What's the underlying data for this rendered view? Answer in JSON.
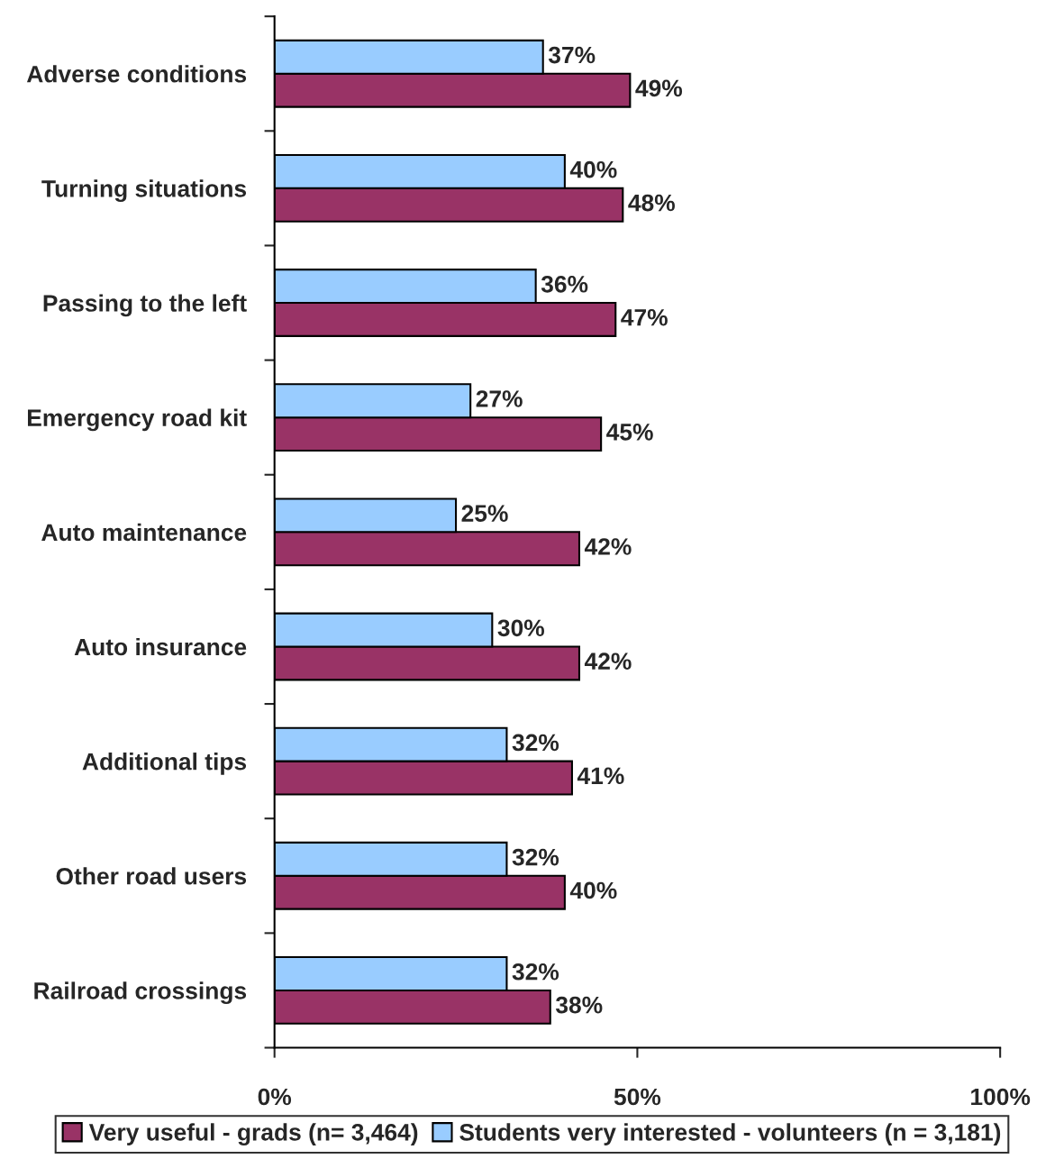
{
  "chart_data": {
    "type": "bar",
    "orientation": "horizontal",
    "categories": [
      "Adverse conditions",
      "Turning situations",
      "Passing to the left",
      "Emergency road kit",
      "Auto maintenance",
      "Auto insurance",
      "Additional tips",
      "Other road users",
      "Railroad crossings"
    ],
    "series": [
      {
        "name": "Very useful - grads (n= 3,464)",
        "color": "#993366",
        "values": [
          49,
          48,
          47,
          45,
          42,
          42,
          41,
          40,
          38
        ],
        "value_labels": [
          "49%",
          "48%",
          "47%",
          "45%",
          "42%",
          "42%",
          "41%",
          "40%",
          "38%"
        ]
      },
      {
        "name": "Students very interested - volunteers (n = 3,181)",
        "color": "#99ccff",
        "values": [
          37,
          40,
          36,
          27,
          25,
          30,
          32,
          32,
          32
        ],
        "value_labels": [
          "37%",
          "40%",
          "36%",
          "27%",
          "25%",
          "30%",
          "32%",
          "32%",
          "32%"
        ]
      }
    ],
    "xlim": [
      0,
      100
    ],
    "xticks": [
      {
        "value": 0,
        "label": "0%"
      },
      {
        "value": 50,
        "label": "50%"
      },
      {
        "value": 100,
        "label": "100%"
      }
    ],
    "grid": false,
    "legend": "bottom"
  }
}
